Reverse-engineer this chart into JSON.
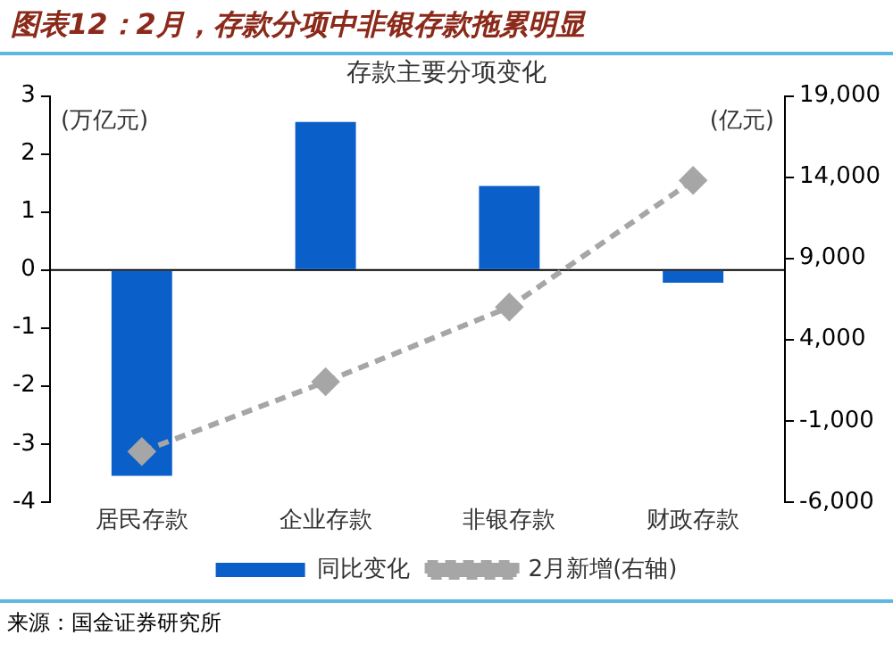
{
  "chart_data": {
    "type": "bar",
    "title": "图表12：2月，存款分项中非银存款拖累明显",
    "subtitle": "存款主要分项变化",
    "categories": [
      "居民存款",
      "企业存款",
      "非银存款",
      "财政存款"
    ],
    "series": [
      {
        "name": "同比变化",
        "color": "#0a5fc8",
        "values": [
          -3.55,
          2.55,
          1.45,
          -0.22
        ]
      },
      {
        "name": "2月新增(右轴)",
        "type": "line",
        "axis": "y2",
        "color": "#a6a6a6",
        "marker": "diamond",
        "line_style": "dashed",
        "values": [
          -2900,
          1400,
          6000,
          13800
        ]
      }
    ],
    "ylim": [
      -4,
      3
    ],
    "yticks": [
      -4,
      -3,
      -2,
      -1,
      0,
      1,
      2,
      3
    ],
    "y2lim": [
      -6000,
      19000
    ],
    "y2ticks": [
      {
        "value": -6000,
        "label": "-6,000"
      },
      {
        "value": -1000,
        "label": "-1,000"
      },
      {
        "value": 4000,
        "label": "4,000"
      },
      {
        "value": 9000,
        "label": "9,000"
      },
      {
        "value": 14000,
        "label": "14,000"
      },
      {
        "value": 19000,
        "label": "19,000"
      }
    ],
    "legend": "bottom",
    "annotations": [
      "(万亿元)",
      "(亿元)",
      "来源：国金证券研究所"
    ]
  }
}
